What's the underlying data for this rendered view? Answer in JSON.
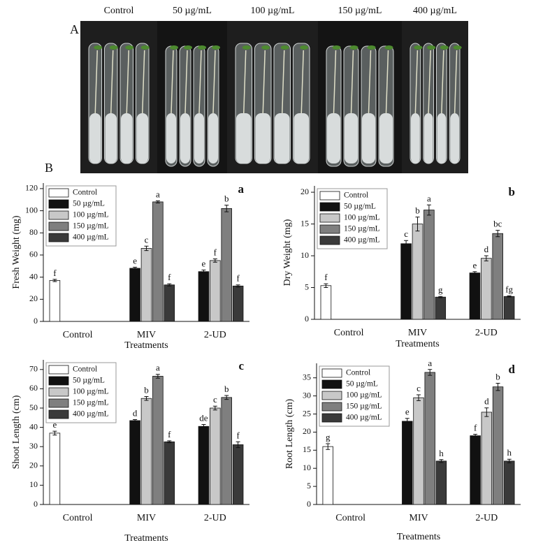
{
  "photo": {
    "panel_label": "A",
    "labels": [
      "Control",
      "50 µg/mL",
      "100 µg/mL",
      "150 µg/mL",
      "400 µg/mL"
    ]
  },
  "panel_label": "B",
  "chart_data": [
    {
      "type": "bar",
      "panel": "a",
      "ylabel": "Fresh Weight (mg)",
      "xlabel": "Treatments",
      "categories": [
        "Control",
        "MIV",
        "2-UD"
      ],
      "ylim": [
        0,
        125
      ],
      "yticks": [
        0,
        20,
        40,
        60,
        80,
        100,
        120
      ],
      "legend": "top-left",
      "series": [
        {
          "name": "Control",
          "color": "#ffffff",
          "values": [
            37,
            null,
            null
          ],
          "errors": [
            1,
            null,
            null
          ],
          "letters": [
            "f",
            null,
            null
          ]
        },
        {
          "name": "50 µg/mL",
          "color": "#111111",
          "values": [
            null,
            48,
            45
          ],
          "errors": [
            null,
            1,
            1.5
          ],
          "letters": [
            null,
            "e",
            "e"
          ]
        },
        {
          "name": "100 µg/mL",
          "color": "#c8c8c8",
          "values": [
            null,
            66,
            55
          ],
          "errors": [
            null,
            2,
            1.5
          ],
          "letters": [
            null,
            "c",
            "f"
          ]
        },
        {
          "name": "150 µg/mL",
          "color": "#7f7f7f",
          "values": [
            null,
            108,
            102
          ],
          "errors": [
            null,
            1,
            3
          ],
          "letters": [
            null,
            "a",
            "b"
          ]
        },
        {
          "name": "400 µg/mL",
          "color": "#3a3a3a",
          "values": [
            null,
            33,
            32
          ],
          "errors": [
            null,
            1,
            1
          ],
          "letters": [
            null,
            "f",
            "f"
          ]
        }
      ]
    },
    {
      "type": "bar",
      "panel": "b",
      "ylabel": "Dry Weight (mg)",
      "xlabel": "Treatments",
      "categories": [
        "Control",
        "MIV",
        "2-UD"
      ],
      "ylim": [
        0,
        21
      ],
      "yticks": [
        0,
        5,
        10,
        15,
        20
      ],
      "legend": "top-left",
      "series": [
        {
          "name": "Control",
          "color": "#ffffff",
          "values": [
            5.3,
            null,
            null
          ],
          "errors": [
            0.3,
            null,
            null
          ],
          "letters": [
            "f",
            null,
            null
          ]
        },
        {
          "name": "50 µg/mL",
          "color": "#111111",
          "values": [
            null,
            11.9,
            7.3
          ],
          "errors": [
            null,
            0.5,
            0.2
          ],
          "letters": [
            null,
            "c",
            "e"
          ]
        },
        {
          "name": "100 µg/mL",
          "color": "#c8c8c8",
          "values": [
            null,
            15,
            9.6
          ],
          "errors": [
            null,
            1.1,
            0.4
          ],
          "letters": [
            null,
            "b",
            "d"
          ]
        },
        {
          "name": "150 µg/mL",
          "color": "#7f7f7f",
          "values": [
            null,
            17.2,
            13.5
          ],
          "errors": [
            null,
            0.8,
            0.5
          ],
          "letters": [
            null,
            "a",
            "bc"
          ]
        },
        {
          "name": "400 µg/mL",
          "color": "#3a3a3a",
          "values": [
            null,
            3.5,
            3.6
          ],
          "errors": [
            null,
            0.1,
            0.1
          ],
          "letters": [
            null,
            "g",
            "fg"
          ]
        }
      ]
    },
    {
      "type": "bar",
      "panel": "c",
      "ylabel": "Shoot Length (cm)",
      "xlabel": "Treatments",
      "categories": [
        "Control",
        "MIV",
        "2-UD"
      ],
      "ylim": [
        0,
        75
      ],
      "yticks": [
        0,
        10,
        20,
        30,
        40,
        50,
        60,
        70
      ],
      "legend": "top-left",
      "series": [
        {
          "name": "Control",
          "color": "#ffffff",
          "values": [
            37,
            null,
            null
          ],
          "errors": [
            1,
            null,
            null
          ],
          "letters": [
            "e",
            null,
            null
          ]
        },
        {
          "name": "50 µg/mL",
          "color": "#111111",
          "values": [
            null,
            43.5,
            40.5
          ],
          "errors": [
            null,
            0.5,
            1
          ],
          "letters": [
            null,
            "d",
            "de"
          ]
        },
        {
          "name": "100 µg/mL",
          "color": "#c8c8c8",
          "values": [
            null,
            55,
            50
          ],
          "errors": [
            null,
            1,
            1
          ],
          "letters": [
            null,
            "b",
            "c"
          ]
        },
        {
          "name": "150 µg/mL",
          "color": "#7f7f7f",
          "values": [
            null,
            66.5,
            55.5
          ],
          "errors": [
            null,
            1,
            1
          ],
          "letters": [
            null,
            "a",
            "b"
          ]
        },
        {
          "name": "400 µg/mL",
          "color": "#3a3a3a",
          "values": [
            null,
            32.5,
            31
          ],
          "errors": [
            null,
            0.5,
            1.5
          ],
          "letters": [
            null,
            "f",
            "f"
          ]
        }
      ]
    },
    {
      "type": "bar",
      "panel": "d",
      "ylabel": "Root Length (cm)",
      "xlabel": "Treatments",
      "categories": [
        "Control",
        "MIV",
        "2-UD"
      ],
      "ylim": [
        0,
        39
      ],
      "yticks": [
        0,
        5,
        10,
        15,
        20,
        25,
        30,
        35
      ],
      "legend": "top-left",
      "series": [
        {
          "name": "Control",
          "color": "#ffffff",
          "values": [
            16,
            null,
            null
          ],
          "errors": [
            0.8,
            null,
            null
          ],
          "letters": [
            "g",
            null,
            null
          ]
        },
        {
          "name": "50 µg/mL",
          "color": "#111111",
          "values": [
            null,
            23,
            19
          ],
          "errors": [
            null,
            0.8,
            0.4
          ],
          "letters": [
            null,
            "e",
            "f"
          ]
        },
        {
          "name": "100 µg/mL",
          "color": "#c8c8c8",
          "values": [
            null,
            29.5,
            25.5
          ],
          "errors": [
            null,
            0.8,
            1.2
          ],
          "letters": [
            null,
            "c",
            "d"
          ]
        },
        {
          "name": "150 µg/mL",
          "color": "#7f7f7f",
          "values": [
            null,
            36.5,
            32.5
          ],
          "errors": [
            null,
            0.8,
            1
          ],
          "letters": [
            null,
            "a",
            "b"
          ]
        },
        {
          "name": "400 µg/mL",
          "color": "#3a3a3a",
          "values": [
            null,
            12,
            12
          ],
          "errors": [
            null,
            0.4,
            0.5
          ],
          "letters": [
            null,
            "h",
            "h"
          ]
        }
      ]
    }
  ]
}
